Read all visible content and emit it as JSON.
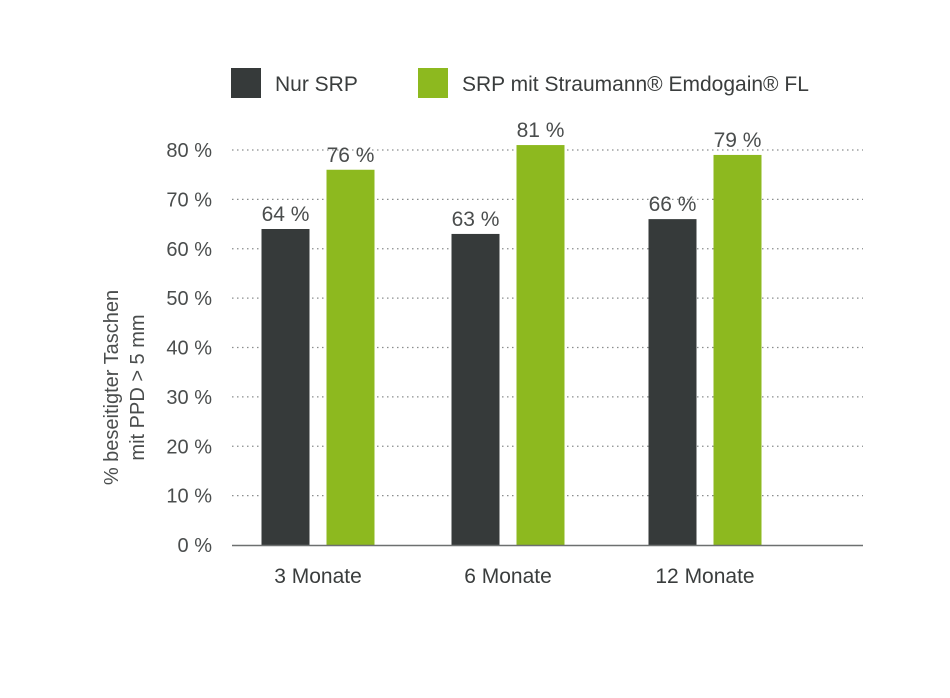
{
  "chart_data": {
    "type": "bar",
    "categories": [
      "3 Monate",
      "6 Monate",
      "12 Monate"
    ],
    "series": [
      {
        "name": "Nur SRP",
        "color": "#363a3a",
        "values": [
          64,
          63,
          66
        ],
        "labels": [
          "64 %",
          "63 %",
          "66 %"
        ]
      },
      {
        "name": "SRP mit Straumann® Emdogain® FL",
        "color": "#8db91f",
        "values": [
          76,
          81,
          79
        ],
        "labels": [
          "76 %",
          "81 %",
          "79 %"
        ]
      }
    ],
    "ylabel_lines": [
      "% beseitigter Taschen",
      "mit PPD > 5 mm"
    ],
    "ylim": [
      0,
      80
    ],
    "yticks": [
      0,
      10,
      20,
      30,
      40,
      50,
      60,
      70,
      80
    ],
    "ytick_labels": [
      "0 %",
      "10 %",
      "20 %",
      "30 %",
      "40 %",
      "50 %",
      "60 %",
      "70 %",
      "80 %"
    ],
    "grid": true,
    "legend_position": "top"
  }
}
